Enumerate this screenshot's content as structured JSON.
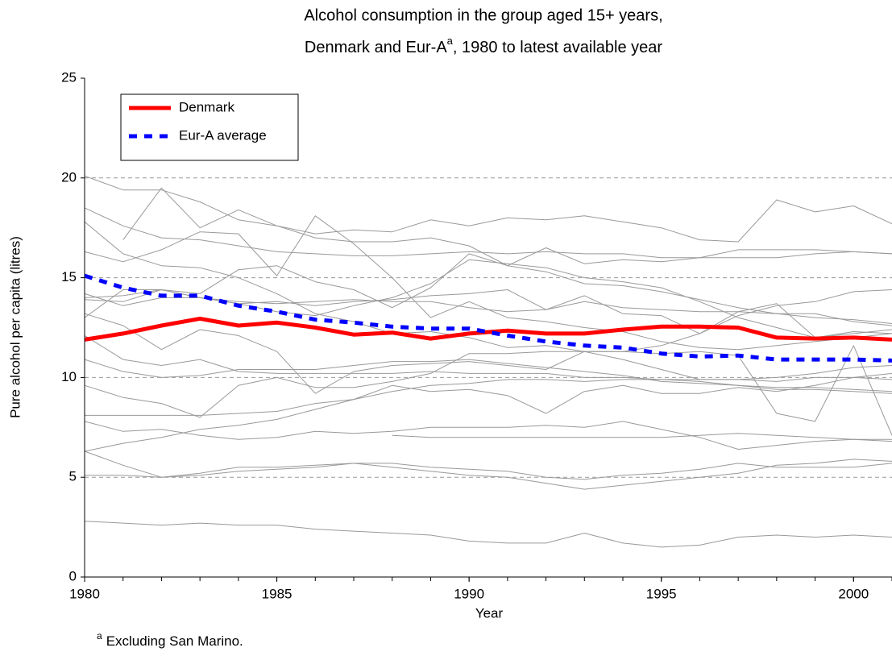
{
  "chart_data": {
    "type": "line",
    "title": {
      "line1": "Alcohol consumption in the group aged 15+ years,",
      "line2": [
        "Denmark and Eur-A",
        "a",
        ", 1980 to latest available year"
      ]
    },
    "x_label": "Year",
    "y_label": "Pure alcohol per capita (litres)",
    "footnote": {
      "mark": "a",
      "text": "Excluding San Marino."
    },
    "xlim": [
      1980,
      2001
    ],
    "xticks": [
      1980,
      1985,
      1990,
      1995,
      2000
    ],
    "ylim": [
      0,
      25
    ],
    "yticks": [
      0,
      5,
      10,
      15,
      20,
      25
    ],
    "grid": true,
    "legend": "top-left",
    "x": [
      1980,
      1981,
      1982,
      1983,
      1984,
      1985,
      1986,
      1987,
      1988,
      1989,
      1990,
      1991,
      1992,
      1993,
      1994,
      1995,
      1996,
      1997,
      1998,
      1999,
      2000,
      2001
    ],
    "series": [
      {
        "color": "#999999",
        "values": [
          20.1,
          19.4,
          19.4,
          18.8,
          17.9,
          17.6,
          17.2,
          17.4,
          17.3,
          17.9,
          17.6,
          18.0,
          17.9,
          18.1,
          17.8,
          17.5,
          16.9,
          16.8,
          18.9,
          18.3,
          18.6,
          17.7
        ]
      },
      {
        "color": "#999999",
        "values": [
          18.5,
          17.6,
          17.0,
          16.9,
          16.6,
          16.3,
          16.2,
          16.1,
          16.1,
          16.2,
          16.3,
          16.2,
          16.3,
          16.2,
          16.2,
          16.0,
          16.0,
          16.0,
          16.0,
          16.2,
          16.3,
          16.2
        ]
      },
      {
        "color": "#999999",
        "values": [
          null,
          16.9,
          19.5,
          17.5,
          18.4,
          17.6,
          17.0,
          16.8,
          16.8,
          17.0,
          16.6,
          15.6,
          16.5,
          15.7,
          15.9,
          15.8,
          16.0,
          16.4,
          16.4,
          16.4,
          16.3,
          16.2
        ]
      },
      {
        "color": "#999999",
        "values": [
          17.8,
          16.2,
          15.6,
          15.5,
          15.0,
          14.2,
          13.2,
          12.8,
          12.2,
          12.3,
          12.0,
          11.5,
          11.6,
          11.3,
          11.3,
          11.6,
          12.2,
          13.3,
          13.7,
          12.0,
          12.3,
          12.2
        ]
      },
      {
        "color": "#999999",
        "values": [
          16.3,
          15.8,
          16.4,
          17.3,
          17.2,
          15.1,
          18.1,
          16.7,
          15.0,
          13.0,
          13.8,
          13.0,
          12.8,
          12.5,
          12.3,
          11.8,
          11.5,
          11.4,
          11.6,
          11.8,
          12.0,
          12.2
        ]
      },
      {
        "color": "#999999",
        "values": [
          14.2,
          13.6,
          14.0,
          14.0,
          13.7,
          13.8,
          13.6,
          13.8,
          13.9,
          14.1,
          14.2,
          14.4,
          13.4,
          14.1,
          13.2,
          13.1,
          12.2,
          13.1,
          13.6,
          13.8,
          14.3,
          14.4
        ]
      },
      {
        "color": "#999999",
        "values": [
          13.2,
          12.6,
          11.4,
          12.4,
          12.1,
          11.3,
          9.2,
          10.3,
          10.6,
          10.7,
          10.8,
          10.6,
          10.4,
          11.3,
          10.9,
          10.4,
          9.9,
          9.9,
          9.8,
          10.0,
          10.0,
          9.9
        ]
      },
      {
        "color": "#999999",
        "values": [
          12.1,
          10.9,
          10.6,
          10.9,
          10.3,
          10.2,
          10.2,
          10.2,
          10.2,
          10.3,
          10.2,
          10.2,
          10.2,
          10.0,
          10.0,
          9.9,
          9.9,
          9.9,
          10.0,
          10.2,
          10.5,
          10.6
        ]
      },
      {
        "color": "#999999",
        "values": [
          10.9,
          10.3,
          10.0,
          10.1,
          10.4,
          10.4,
          10.4,
          10.6,
          10.8,
          10.8,
          10.9,
          10.7,
          10.5,
          10.3,
          10.1,
          9.8,
          9.7,
          9.6,
          9.5,
          9.5,
          9.4,
          9.3
        ]
      },
      {
        "color": "#999999",
        "values": [
          9.6,
          9.0,
          8.7,
          8.0,
          9.6,
          10.0,
          9.5,
          9.5,
          9.8,
          10.2,
          11.2,
          11.2,
          11.3,
          11.3,
          11.3,
          11.2,
          11.3,
          11.1,
          8.2,
          7.8,
          11.6,
          7.1
        ]
      },
      {
        "color": "#999999",
        "values": [
          8.1,
          8.1,
          8.1,
          8.1,
          8.2,
          8.3,
          8.7,
          8.9,
          9.6,
          9.3,
          9.4,
          9.1,
          8.2,
          9.3,
          9.6,
          9.2,
          9.2,
          9.5,
          9.3,
          9.6,
          10.0,
          10.2
        ]
      },
      {
        "color": "#999999",
        "values": [
          7.8,
          7.3,
          7.4,
          7.1,
          6.9,
          7.0,
          7.3,
          7.2,
          7.3,
          7.5,
          7.5,
          7.5,
          7.6,
          7.5,
          7.8,
          7.4,
          7.0,
          6.4,
          6.6,
          6.8,
          6.9,
          6.8
        ]
      },
      {
        "color": "#999999",
        "values": [
          6.3,
          6.7,
          7.0,
          7.4,
          7.6,
          7.9,
          8.4,
          8.9,
          9.3,
          9.6,
          9.7,
          9.9,
          9.9,
          9.8,
          9.9,
          9.9,
          9.8,
          9.6,
          9.4,
          9.4,
          9.3,
          9.2
        ]
      },
      {
        "color": "#999999",
        "values": [
          null,
          null,
          null,
          null,
          null,
          null,
          null,
          null,
          7.1,
          7.0,
          7.0,
          7.0,
          7.0,
          7.0,
          7.0,
          7.0,
          7.1,
          7.2,
          7.1,
          7.0,
          6.9,
          6.9
        ]
      },
      {
        "color": "#999999",
        "values": [
          6.3,
          5.6,
          5.0,
          5.2,
          5.5,
          5.5,
          5.6,
          5.7,
          5.7,
          5.5,
          5.4,
          5.3,
          5.0,
          4.9,
          5.1,
          5.2,
          5.4,
          5.7,
          5.5,
          5.5,
          5.5,
          5.7
        ]
      },
      {
        "color": "#999999",
        "values": [
          5.1,
          5.1,
          5.0,
          5.1,
          5.3,
          5.4,
          5.5,
          5.7,
          5.5,
          5.3,
          5.1,
          5.0,
          4.7,
          4.4,
          4.6,
          4.8,
          5.0,
          5.2,
          5.6,
          5.7,
          5.9,
          5.8
        ]
      },
      {
        "color": "#999999",
        "values": [
          2.8,
          2.7,
          2.6,
          2.7,
          2.6,
          2.6,
          2.4,
          2.3,
          2.2,
          2.1,
          1.8,
          1.7,
          1.7,
          2.2,
          1.7,
          1.5,
          1.6,
          2.0,
          2.1,
          2.0,
          2.1,
          2.0
        ]
      },
      {
        "color": "#999999",
        "values": [
          13.9,
          13.8,
          14.4,
          14.0,
          13.8,
          13.7,
          13.8,
          13.9,
          13.8,
          13.8,
          13.5,
          13.3,
          13.4,
          13.8,
          13.5,
          13.4,
          13.3,
          13.3,
          13.2,
          13.0,
          12.9,
          12.7
        ]
      },
      {
        "color": "#999999",
        "values": [
          14.0,
          14.1,
          14.4,
          14.2,
          15.4,
          15.6,
          14.8,
          14.4,
          13.5,
          14.5,
          16.2,
          15.6,
          15.3,
          14.7,
          14.6,
          14.3,
          13.9,
          13.5,
          13.2,
          13.2,
          12.8,
          12.6
        ]
      },
      {
        "color": "#999999",
        "values": [
          13.0,
          14.4,
          14.4,
          14.0,
          13.7,
          13.3,
          13.1,
          13.6,
          14.0,
          14.7,
          15.9,
          15.7,
          15.5,
          15.0,
          14.8,
          14.5,
          13.8,
          13.0,
          12.5,
          12.0,
          12.2,
          12.4
        ]
      },
      {
        "name": "Denmark",
        "color": "#ff0000",
        "line_style": "solid",
        "values": [
          11.9,
          12.2,
          12.6,
          12.95,
          12.6,
          12.75,
          12.5,
          12.15,
          12.25,
          11.95,
          12.2,
          12.35,
          12.2,
          12.2,
          12.4,
          12.55,
          12.55,
          12.5,
          12.0,
          11.95,
          12.0,
          11.9
        ]
      },
      {
        "name": "Eur-A average",
        "color": "#0000ff",
        "line_style": "dashed",
        "values": [
          15.1,
          14.5,
          14.1,
          14.1,
          13.6,
          13.3,
          12.9,
          12.75,
          12.55,
          12.45,
          12.45,
          12.1,
          11.8,
          11.6,
          11.5,
          11.2,
          11.05,
          11.1,
          10.9,
          10.9,
          10.9,
          10.85
        ]
      }
    ]
  }
}
